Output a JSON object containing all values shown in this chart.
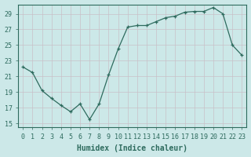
{
  "x": [
    0,
    1,
    2,
    3,
    4,
    5,
    6,
    7,
    8,
    9,
    10,
    11,
    12,
    13,
    14,
    15,
    16,
    17,
    18,
    19,
    20,
    21,
    22,
    23
  ],
  "y": [
    22.2,
    21.5,
    19.2,
    18.2,
    17.3,
    16.5,
    17.5,
    15.5,
    17.5,
    21.2,
    24.5,
    27.3,
    27.5,
    27.5,
    28.0,
    28.5,
    28.7,
    29.2,
    29.3,
    29.3,
    29.8,
    29.0,
    25.0,
    23.7
  ],
  "line_color": "#2e6b5e",
  "marker": "+",
  "marker_size": 3.5,
  "bg_color": "#cce8e8",
  "grid_color": "#b8d8d8",
  "xlabel": "Humidex (Indice chaleur)",
  "xlabel_fontsize": 7,
  "tick_fontsize": 6,
  "ylim": [
    15,
    30
  ],
  "yticks": [
    15,
    17,
    19,
    21,
    23,
    25,
    27,
    29
  ],
  "xticks": [
    0,
    1,
    2,
    3,
    4,
    5,
    6,
    7,
    8,
    9,
    10,
    11,
    12,
    13,
    14,
    15,
    16,
    17,
    18,
    19,
    20,
    21,
    22,
    23
  ],
  "title_color": "#2e6b5e"
}
